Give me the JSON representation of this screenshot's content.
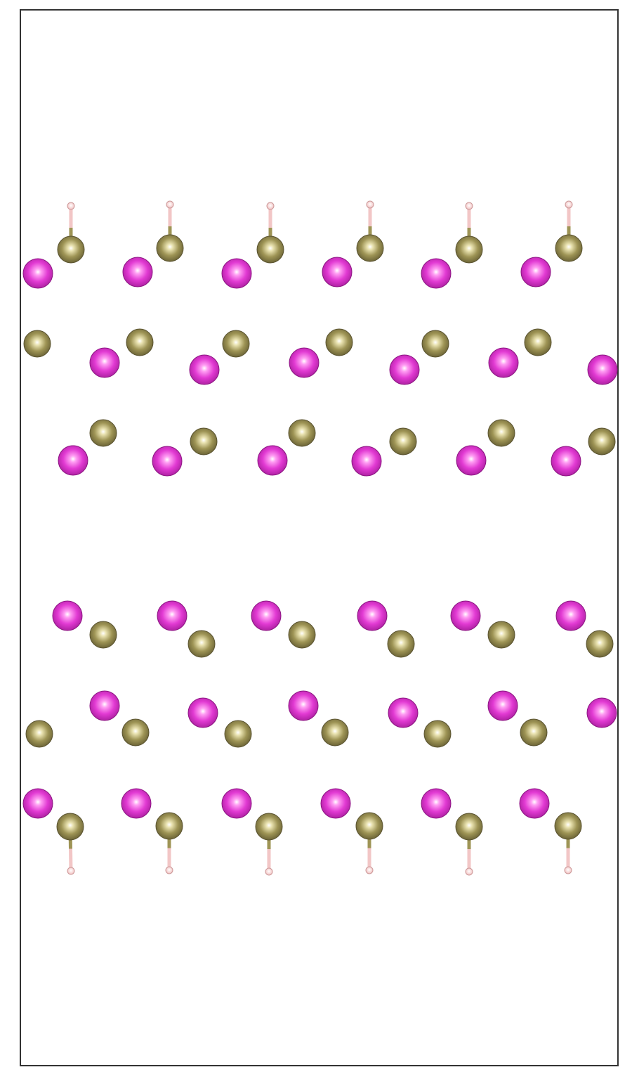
{
  "colors": {
    "background": "#ffffff",
    "cell_border": "#333333",
    "atom_magenta": "#e23ad3",
    "atom_olive": "#9e9455",
    "atom_hydrogen": "#f4d3d3"
  },
  "structure": {
    "atom_kinds": [
      "magenta",
      "olive",
      "hydrogen"
    ],
    "bonds": "hydrogen-to-olive",
    "layers": 6,
    "atoms_per_layer_row": 6
  }
}
